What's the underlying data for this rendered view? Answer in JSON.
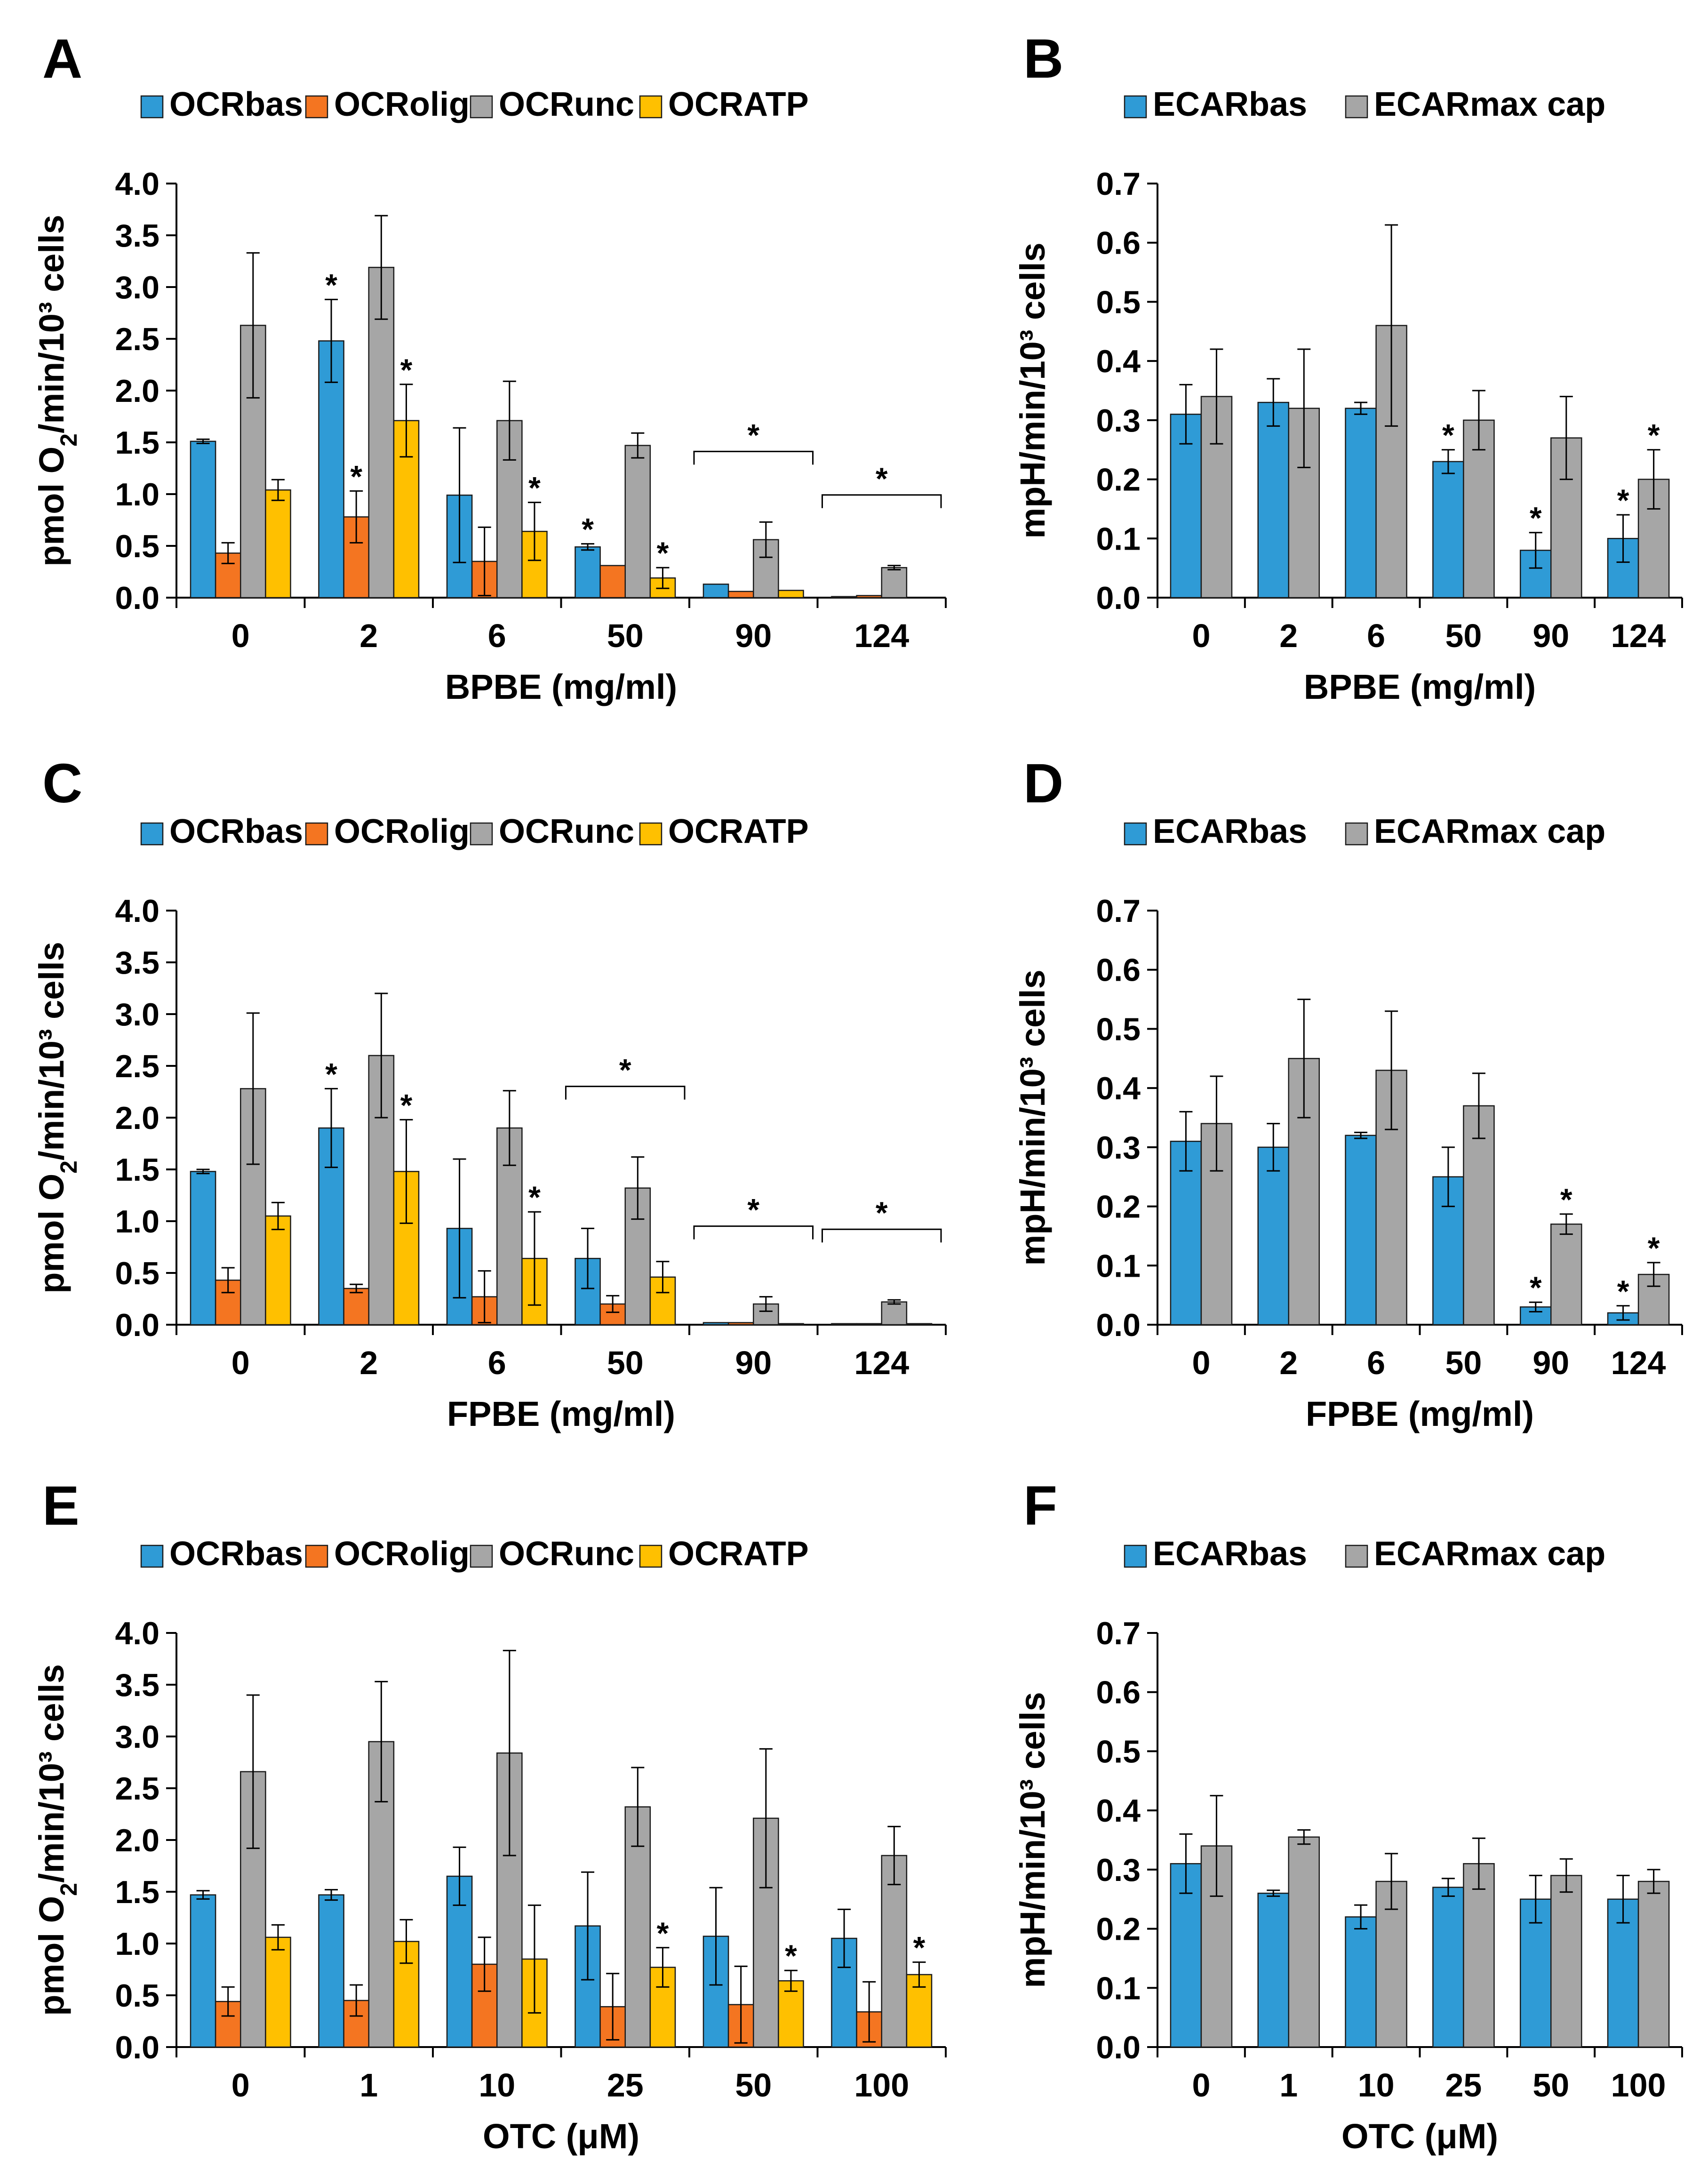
{
  "colors": {
    "ocr_bas": "#2F9BD6",
    "ocr_olig": "#F47521",
    "ocr_unc": "#A6A6A6",
    "ocr_atp": "#FFC000",
    "ecar_bas": "#2F9BD6",
    "ecar_max": "#A6A6A6"
  },
  "chart_data": [
    {
      "panel": "A",
      "type": "bar",
      "xlabel": "BPBE (mg/ml)",
      "ylabel": "pmol O2/min/10³ cells",
      "ylim": [
        0,
        4.0
      ],
      "ytick_step": 0.5,
      "ytick_decimals": 1,
      "categories": [
        "0",
        "2",
        "6",
        "50",
        "90",
        "124"
      ],
      "series": [
        {
          "name": "OCRbas",
          "color_key": "ocr_bas",
          "values": [
            1.51,
            2.48,
            0.99,
            0.49,
            0.13,
            0.01
          ],
          "errors": [
            0.02,
            0.4,
            0.65,
            0.03,
            0.0,
            0.0
          ],
          "sig": [
            false,
            true,
            false,
            true,
            false,
            false
          ]
        },
        {
          "name": "OCRolig",
          "color_key": "ocr_olig",
          "values": [
            0.43,
            0.78,
            0.35,
            0.31,
            0.06,
            0.02
          ],
          "errors": [
            0.1,
            0.25,
            0.33,
            0.0,
            0.0,
            0.0
          ],
          "sig": [
            false,
            true,
            false,
            false,
            false,
            false
          ]
        },
        {
          "name": "OCRunc",
          "color_key": "ocr_unc",
          "values": [
            2.63,
            3.19,
            1.71,
            1.47,
            0.56,
            0.29
          ],
          "errors": [
            0.7,
            0.5,
            0.38,
            0.12,
            0.17,
            0.02
          ],
          "sig": [
            false,
            false,
            false,
            false,
            false,
            false
          ]
        },
        {
          "name": "OCRATP",
          "color_key": "ocr_atp",
          "values": [
            1.04,
            1.71,
            0.64,
            0.19,
            0.07,
            0.0
          ],
          "errors": [
            0.1,
            0.35,
            0.28,
            0.1,
            0.0,
            0.0
          ],
          "sig": [
            false,
            true,
            true,
            true,
            false,
            false
          ]
        }
      ],
      "brackets": [
        {
          "category": "90",
          "label": "*"
        },
        {
          "category": "124",
          "label": "*"
        }
      ]
    },
    {
      "panel": "B",
      "type": "bar",
      "xlabel": "BPBE (mg/ml)",
      "ylabel": "mpH/min/10³ cells",
      "ylim": [
        0,
        0.7
      ],
      "ytick_step": 0.1,
      "ytick_decimals": 1,
      "categories": [
        "0",
        "2",
        "6",
        "50",
        "90",
        "124"
      ],
      "series": [
        {
          "name": "ECARbas",
          "color_key": "ecar_bas",
          "values": [
            0.31,
            0.33,
            0.32,
            0.23,
            0.08,
            0.1
          ],
          "errors": [
            0.05,
            0.04,
            0.01,
            0.02,
            0.03,
            0.04
          ],
          "sig": [
            false,
            false,
            false,
            true,
            true,
            true
          ]
        },
        {
          "name": "ECARmax cap",
          "color_key": "ecar_max",
          "values": [
            0.34,
            0.32,
            0.46,
            0.3,
            0.27,
            0.2
          ],
          "errors": [
            0.08,
            0.1,
            0.17,
            0.05,
            0.07,
            0.05
          ],
          "sig": [
            false,
            false,
            false,
            false,
            false,
            true
          ]
        }
      ],
      "brackets": []
    },
    {
      "panel": "C",
      "type": "bar",
      "xlabel": "FPBE (mg/ml)",
      "ylabel": "pmol O2/min/10³ cells",
      "ylim": [
        0,
        4.0
      ],
      "ytick_step": 0.5,
      "ytick_decimals": 1,
      "categories": [
        "0",
        "2",
        "6",
        "50",
        "90",
        "124"
      ],
      "series": [
        {
          "name": "OCRbas",
          "color_key": "ocr_bas",
          "values": [
            1.48,
            1.9,
            0.93,
            0.64,
            0.02,
            0.01
          ],
          "errors": [
            0.02,
            0.38,
            0.67,
            0.29,
            0.0,
            0.0
          ],
          "sig": [
            false,
            true,
            false,
            false,
            false,
            false
          ]
        },
        {
          "name": "OCRolig",
          "color_key": "ocr_olig",
          "values": [
            0.43,
            0.35,
            0.27,
            0.2,
            0.02,
            0.01
          ],
          "errors": [
            0.12,
            0.04,
            0.25,
            0.08,
            0.0,
            0.0
          ],
          "sig": [
            false,
            false,
            false,
            false,
            false,
            false
          ]
        },
        {
          "name": "OCRunc",
          "color_key": "ocr_unc",
          "values": [
            2.28,
            2.6,
            1.9,
            1.32,
            0.2,
            0.22
          ],
          "errors": [
            0.73,
            0.6,
            0.36,
            0.3,
            0.07,
            0.02
          ],
          "sig": [
            false,
            false,
            false,
            false,
            false,
            false
          ]
        },
        {
          "name": "OCRATP",
          "color_key": "ocr_atp",
          "values": [
            1.05,
            1.48,
            0.64,
            0.46,
            0.01,
            0.01
          ],
          "errors": [
            0.13,
            0.5,
            0.45,
            0.15,
            0.0,
            0.0
          ],
          "sig": [
            false,
            true,
            true,
            false,
            false,
            false
          ]
        }
      ],
      "brackets": [
        {
          "category": "50",
          "label": "*"
        },
        {
          "category": "90",
          "label": "*"
        },
        {
          "category": "124",
          "label": "*"
        }
      ]
    },
    {
      "panel": "D",
      "type": "bar",
      "xlabel": "FPBE (mg/ml)",
      "ylabel": "mpH/min/10³ cells",
      "ylim": [
        0,
        0.7
      ],
      "ytick_step": 0.1,
      "ytick_decimals": 1,
      "categories": [
        "0",
        "2",
        "6",
        "50",
        "90",
        "124"
      ],
      "series": [
        {
          "name": "ECARbas",
          "color_key": "ecar_bas",
          "values": [
            0.31,
            0.3,
            0.32,
            0.25,
            0.03,
            0.02
          ],
          "errors": [
            0.05,
            0.04,
            0.005,
            0.05,
            0.008,
            0.012
          ],
          "sig": [
            false,
            false,
            false,
            false,
            true,
            true
          ]
        },
        {
          "name": "ECARmax cap",
          "color_key": "ecar_max",
          "values": [
            0.34,
            0.45,
            0.43,
            0.37,
            0.17,
            0.085
          ],
          "errors": [
            0.08,
            0.1,
            0.1,
            0.055,
            0.017,
            0.02
          ],
          "sig": [
            false,
            false,
            false,
            false,
            true,
            true
          ]
        }
      ],
      "brackets": []
    },
    {
      "panel": "E",
      "type": "bar",
      "xlabel": "OTC (μM)",
      "ylabel": "pmol O2/min/10³ cells",
      "ylim": [
        0,
        4.0
      ],
      "ytick_step": 0.5,
      "ytick_decimals": 1,
      "categories": [
        "0",
        "1",
        "10",
        "25",
        "50",
        "100"
      ],
      "series": [
        {
          "name": "OCRbas",
          "color_key": "ocr_bas",
          "values": [
            1.47,
            1.47,
            1.65,
            1.17,
            1.07,
            1.05
          ],
          "errors": [
            0.04,
            0.05,
            0.28,
            0.52,
            0.47,
            0.28
          ],
          "sig": [
            false,
            false,
            false,
            false,
            false,
            false
          ]
        },
        {
          "name": "OCRolig",
          "color_key": "ocr_olig",
          "values": [
            0.44,
            0.45,
            0.8,
            0.39,
            0.41,
            0.34
          ],
          "errors": [
            0.14,
            0.15,
            0.26,
            0.32,
            0.37,
            0.29
          ],
          "sig": [
            false,
            false,
            false,
            false,
            false,
            false
          ]
        },
        {
          "name": "OCRunc",
          "color_key": "ocr_unc",
          "values": [
            2.66,
            2.95,
            2.84,
            2.32,
            2.21,
            1.85
          ],
          "errors": [
            0.74,
            0.58,
            0.99,
            0.38,
            0.67,
            0.28
          ],
          "sig": [
            false,
            false,
            false,
            false,
            false,
            false
          ]
        },
        {
          "name": "OCRATP",
          "color_key": "ocr_atp",
          "values": [
            1.06,
            1.02,
            0.85,
            0.77,
            0.64,
            0.7
          ],
          "errors": [
            0.12,
            0.21,
            0.52,
            0.19,
            0.1,
            0.12
          ],
          "sig": [
            false,
            false,
            false,
            true,
            true,
            true
          ]
        }
      ],
      "brackets": []
    },
    {
      "panel": "F",
      "type": "bar",
      "xlabel": "OTC (μM)",
      "ylabel": "mpH/min/10³ cells",
      "ylim": [
        0,
        0.7
      ],
      "ytick_step": 0.1,
      "ytick_decimals": 1,
      "categories": [
        "0",
        "1",
        "10",
        "25",
        "50",
        "100"
      ],
      "series": [
        {
          "name": "ECARbas",
          "color_key": "ecar_bas",
          "values": [
            0.31,
            0.26,
            0.22,
            0.27,
            0.25,
            0.25
          ],
          "errors": [
            0.05,
            0.005,
            0.02,
            0.015,
            0.04,
            0.04
          ],
          "sig": [
            false,
            false,
            false,
            false,
            false,
            false
          ]
        },
        {
          "name": "ECARmax cap",
          "color_key": "ecar_max",
          "values": [
            0.34,
            0.355,
            0.28,
            0.31,
            0.29,
            0.28
          ],
          "errors": [
            0.085,
            0.012,
            0.047,
            0.043,
            0.028,
            0.02
          ],
          "sig": [
            false,
            false,
            false,
            false,
            false,
            false
          ]
        }
      ],
      "brackets": []
    }
  ]
}
